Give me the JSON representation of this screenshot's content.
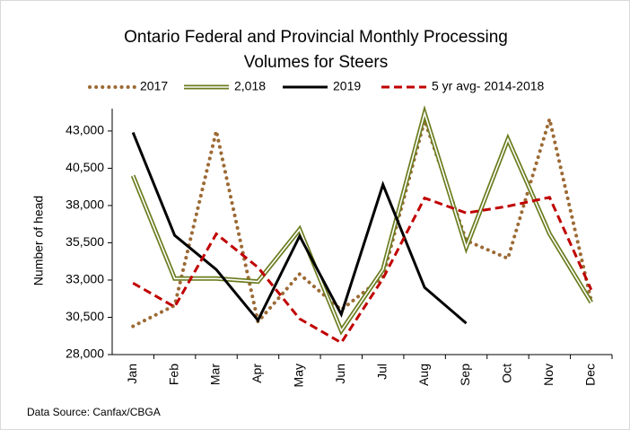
{
  "chart_data": {
    "type": "line",
    "title_lines": [
      "Ontario Federal and Provincial Monthly Processing",
      "Volumes for Steers"
    ],
    "y_label": "Number of head",
    "source": "Data Source: Canfax/CBGA",
    "categories": [
      "Jan",
      "Feb",
      "Mar",
      "Apr",
      "May",
      "Jun",
      "Jul",
      "Aug",
      "Sep",
      "Oct",
      "Nov",
      "Dec"
    ],
    "series": [
      {
        "name": "2017",
        "color": "#9c6a34",
        "style": "dotted",
        "values": [
          29900,
          31300,
          43000,
          30200,
          33400,
          31000,
          33200,
          43700,
          35650,
          34450,
          43800,
          31600
        ]
      },
      {
        "name": "2,018",
        "color": "#6b7d1f",
        "style": "double",
        "values": [
          40000,
          33100,
          33100,
          32900,
          36400,
          29600,
          33700,
          44200,
          35200,
          42450,
          36100,
          31500
        ]
      },
      {
        "name": "2019",
        "color": "#000000",
        "style": "solid",
        "values": [
          42900,
          36000,
          33700,
          30300,
          35950,
          30700,
          39400,
          32500,
          30100,
          null,
          null,
          null
        ]
      },
      {
        "name": "5 yr avg- 2014-2018",
        "color": "#c00000",
        "style": "dashed",
        "values": [
          32800,
          31200,
          36100,
          33850,
          30400,
          28800,
          33100,
          38500,
          37500,
          37950,
          38550,
          32350
        ]
      }
    ],
    "ylim": [
      28000,
      44500
    ],
    "yticks": [
      {
        "value": 28000,
        "label": "28,000"
      },
      {
        "value": 30500,
        "label": "30,500"
      },
      {
        "value": 33000,
        "label": "33,000"
      },
      {
        "value": 35500,
        "label": "35,500"
      },
      {
        "value": 38000,
        "label": "38,000"
      },
      {
        "value": 40500,
        "label": "40,500"
      },
      {
        "value": 43000,
        "label": "43,000"
      }
    ],
    "legend": "top"
  }
}
